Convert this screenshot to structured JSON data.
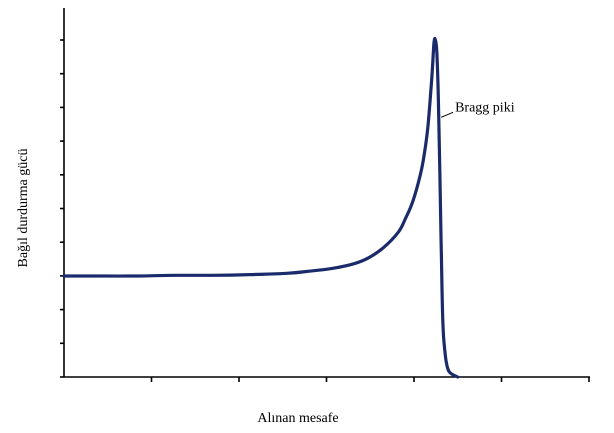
{
  "chart_data": {
    "type": "line",
    "title": "",
    "xlabel": "Alınan mesafe",
    "ylabel": "Bağıl durdurma gücü",
    "xlim": [
      0,
      7
    ],
    "ylim": [
      0,
      5.3
    ],
    "xticks_count": 7,
    "yticks_count": 11,
    "grid": false,
    "legend": "none",
    "annotation": {
      "text": "Bragg piki",
      "point": [
        5.05,
        3.9
      ]
    },
    "series": [
      {
        "color": "#1a2a6b",
        "x": [
          0,
          0.5,
          1.0,
          1.5,
          2.0,
          2.5,
          3.0,
          3.3,
          3.6,
          3.9,
          4.1,
          4.3,
          4.5,
          4.6,
          4.7,
          4.8,
          4.85,
          4.9,
          4.95,
          4.98,
          5.0,
          5.02,
          5.04,
          5.06,
          5.08,
          5.1,
          5.13,
          5.16,
          5.2,
          5.3
        ],
        "y": [
          1.5,
          1.5,
          1.5,
          1.51,
          1.51,
          1.52,
          1.54,
          1.57,
          1.61,
          1.68,
          1.77,
          1.92,
          2.15,
          2.36,
          2.62,
          3.02,
          3.31,
          3.73,
          4.42,
          4.95,
          5.0,
          4.8,
          4.1,
          3.0,
          1.8,
          0.8,
          0.35,
          0.15,
          0.06,
          0.0
        ]
      }
    ]
  }
}
